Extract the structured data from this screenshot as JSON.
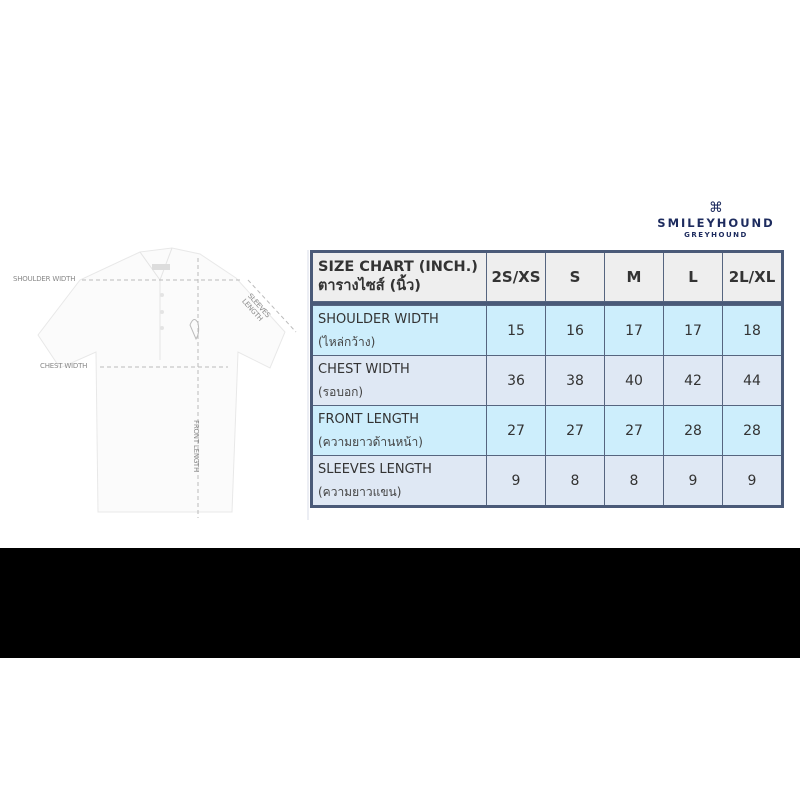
{
  "brand": {
    "name": "SMILEYHOUND",
    "sub": "GREYHOUND"
  },
  "diagram": {
    "shoulder": "SHOULDER WIDTH",
    "chest": "CHEST WIDTH",
    "sleeves": "SLEEVES LENGTH",
    "front": "FRONT LENGTH"
  },
  "table": {
    "title": "SIZE CHART (INCH.)",
    "title_th": "ตารางไซส์ (นิ้ว)",
    "sizes": [
      "2S/XS",
      "S",
      "M",
      "L",
      "2L/XL"
    ],
    "rows": [
      {
        "label": "SHOULDER WIDTH",
        "label_th": "(ไหล่กว้าง)",
        "values": [
          "15",
          "16",
          "17",
          "17",
          "18"
        ]
      },
      {
        "label": "CHEST WIDTH",
        "label_th": "(รอบอก)",
        "values": [
          "36",
          "38",
          "40",
          "42",
          "44"
        ]
      },
      {
        "label": "FRONT LENGTH",
        "label_th": "(ความยาวด้านหน้า)",
        "values": [
          "27",
          "27",
          "27",
          "28",
          "28"
        ]
      },
      {
        "label": "SLEEVES LENGTH",
        "label_th": "(ความยาวแขน)",
        "values": [
          "9",
          "8",
          "8",
          "9",
          "9"
        ]
      }
    ]
  },
  "colors": {
    "border": "#4a5a78",
    "row_cyan": "#cdeefc",
    "row_blue": "#dfe8f4",
    "header": "#eeeeee",
    "brand": "#1d2b5e"
  }
}
